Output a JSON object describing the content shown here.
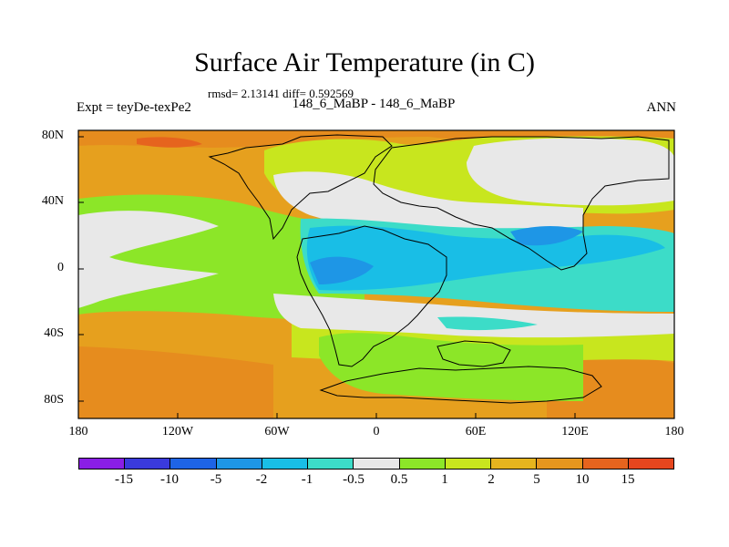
{
  "title": "Surface Air Temperature (in C)",
  "stats": "rmsd= 2.13141 diff= 0.592569",
  "expt_label": "Expt = teyDe-texPe2",
  "comparison": "148_6_MaBP - 148_6_MaBP",
  "season": "ANN",
  "lon_ticks": [
    "180",
    "120W",
    "60W",
    "0",
    "60E",
    "120E",
    "180"
  ],
  "lat_ticks": [
    "80N",
    "40N",
    "0",
    "40S",
    "80S"
  ],
  "colorbar": {
    "labels": [
      "-15",
      "-10",
      "-5",
      "-2",
      "-1",
      "-0.5",
      "0.5",
      "1",
      "2",
      "5",
      "10",
      "15"
    ],
    "colors": [
      "#8a1ee6",
      "#3a3adc",
      "#1e64e6",
      "#1e96e6",
      "#19bee6",
      "#3cdcc8",
      "#e8e8e8",
      "#8ce628",
      "#c8e61e",
      "#e6b41e",
      "#e6961e",
      "#e6641e",
      "#e6461e"
    ]
  },
  "colors": {
    "orange": "#e6a01e",
    "dark_orange": "#e68c1e",
    "red_orange": "#e6641e",
    "yellow_green": "#c8e61e",
    "green": "#8ce628",
    "white": "#e8e8e8",
    "cyan": "#3cdcc8",
    "light_blue": "#19bee6",
    "blue": "#1e96e6"
  }
}
